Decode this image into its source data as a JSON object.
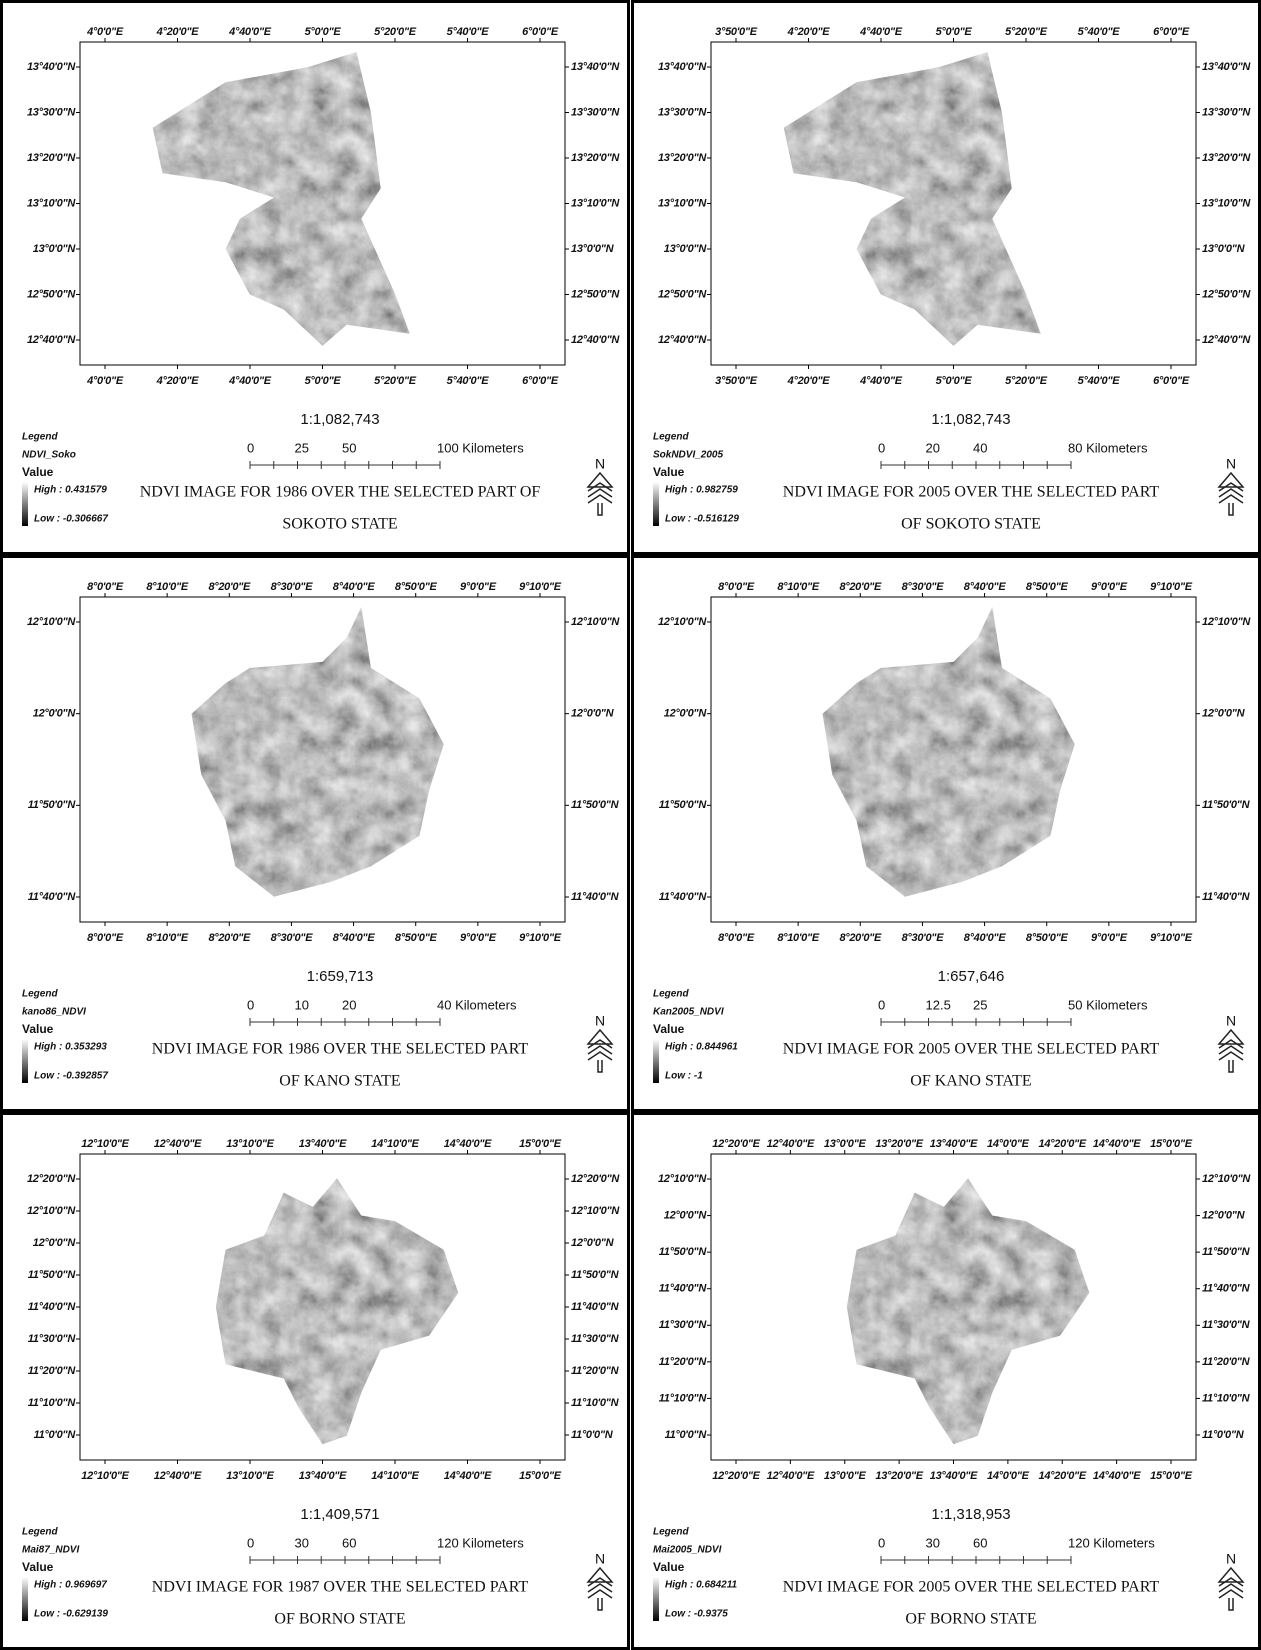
{
  "panels": [
    {
      "x_labels": [
        "4°0'0\"E",
        "4°20'0\"E",
        "4°40'0\"E",
        "5°0'0\"E",
        "5°20'0\"E",
        "5°40'0\"E",
        "6°0'0\"E"
      ],
      "y_labels": [
        "13°40'0\"N",
        "13°30'0\"N",
        "13°20'0\"N",
        "13°10'0\"N",
        "13°0'0\"N",
        "12°50'0\"N",
        "12°40'0\"N"
      ],
      "scale": "1:1,082,743",
      "scalebar": [
        "0",
        "25",
        "50",
        "100 Kilometers"
      ],
      "legend_title": "Legend",
      "layer": "NDVI_Soko",
      "value_label": "Value",
      "high": "High : 0.431579",
      "low": "Low : -0.306667",
      "caption": [
        "NDVI IMAGE FOR 1986 OVER THE SELECTED PART OF",
        "SOKOTO STATE"
      ],
      "north": "N"
    },
    {
      "x_labels": [
        "3°50'0\"E",
        "4°20'0\"E",
        "4°40'0\"E",
        "5°0'0\"E",
        "5°20'0\"E",
        "5°40'0\"E",
        "6°0'0\"E"
      ],
      "y_labels": [
        "13°40'0\"N",
        "13°30'0\"N",
        "13°20'0\"N",
        "13°10'0\"N",
        "13°0'0\"N",
        "12°50'0\"N",
        "12°40'0\"N"
      ],
      "scale": "1:1,082,743",
      "scalebar": [
        "0",
        "20",
        "40",
        "80 Kilometers"
      ],
      "legend_title": "Legend",
      "layer": "SokNDVI_2005",
      "value_label": "Value",
      "high": "High : 0.982759",
      "low": "Low : -0.516129",
      "caption": [
        "NDVI IMAGE FOR 2005 OVER THE SELECTED PART",
        "OF SOKOTO STATE"
      ],
      "north": "N"
    },
    {
      "x_labels": [
        "8°0'0\"E",
        "8°10'0\"E",
        "8°20'0\"E",
        "8°30'0\"E",
        "8°40'0\"E",
        "8°50'0\"E",
        "9°0'0\"E",
        "9°10'0\"E"
      ],
      "y_labels": [
        "12°10'0\"N",
        "12°0'0\"N",
        "11°50'0\"N",
        "11°40'0\"N"
      ],
      "scale": "1:659,713",
      "scalebar": [
        "0",
        "10",
        "20",
        "40 Kilometers"
      ],
      "legend_title": "Legend",
      "layer": "kano86_NDVI",
      "value_label": "Value",
      "high": "High : 0.353293",
      "low": "Low : -0.392857",
      "caption": [
        "NDVI IMAGE FOR 1986 OVER THE SELECTED PART",
        "OF KANO STATE"
      ],
      "north": "N"
    },
    {
      "x_labels": [
        "8°0'0\"E",
        "8°10'0\"E",
        "8°20'0\"E",
        "8°30'0\"E",
        "8°40'0\"E",
        "8°50'0\"E",
        "9°0'0\"E",
        "9°10'0\"E"
      ],
      "y_labels": [
        "12°10'0\"N",
        "12°0'0\"N",
        "11°50'0\"N",
        "11°40'0\"N"
      ],
      "scale": "1:657,646",
      "scalebar": [
        "0",
        "12.5",
        "25",
        "50 Kilometers"
      ],
      "legend_title": "Legend",
      "layer": "Kan2005_NDVI",
      "value_label": "Value",
      "high": "High : 0.844961",
      "low": "Low : -1",
      "caption": [
        "NDVI IMAGE FOR 2005 OVER THE SELECTED PART",
        "OF KANO STATE"
      ],
      "north": "N"
    },
    {
      "x_labels": [
        "12°10'0\"E",
        "12°40'0\"E",
        "13°10'0\"E",
        "13°40'0\"E",
        "14°10'0\"E",
        "14°40'0\"E",
        "15°0'0\"E"
      ],
      "y_labels": [
        "12°20'0\"N",
        "12°10'0\"N",
        "12°0'0\"N",
        "11°50'0\"N",
        "11°40'0\"N",
        "11°30'0\"N",
        "11°20'0\"N",
        "11°10'0\"N",
        "11°0'0\"N"
      ],
      "scale": "1:1,409,571",
      "scalebar": [
        "0",
        "30",
        "60",
        "120 Kilometers"
      ],
      "legend_title": "Legend",
      "layer": "Mai87_NDVI",
      "value_label": "Value",
      "high": "High : 0.969697",
      "low": "Low : -0.629139",
      "caption": [
        "NDVI IMAGE FOR 1987 OVER THE SELECTED PART",
        "OF BORNO STATE"
      ],
      "north": "N"
    },
    {
      "x_labels": [
        "12°20'0\"E",
        "12°40'0\"E",
        "13°0'0\"E",
        "13°20'0\"E",
        "13°40'0\"E",
        "14°0'0\"E",
        "14°20'0\"E",
        "14°40'0\"E",
        "15°0'0\"E"
      ],
      "y_labels": [
        "12°10'0\"N",
        "12°0'0\"N",
        "11°50'0\"N",
        "11°40'0\"N",
        "11°30'0\"N",
        "11°20'0\"N",
        "11°10'0\"N",
        "11°0'0\"N"
      ],
      "scale": "1:1,318,953",
      "scalebar": [
        "0",
        "30",
        "60",
        "120 Kilometers"
      ],
      "legend_title": "Legend",
      "layer": "Mai2005_NDVI",
      "value_label": "Value",
      "high": "High : 0.684211",
      "low": "Low : -0.9375",
      "caption": [
        "NDVI IMAGE FOR 2005 OVER THE SELECTED PART",
        "OF BORNO STATE"
      ],
      "north": "N"
    }
  ]
}
